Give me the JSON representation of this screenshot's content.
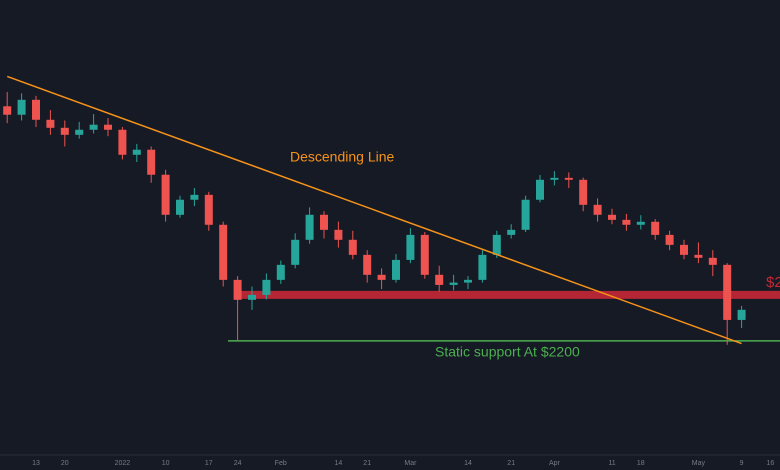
{
  "chart_data": {
    "type": "candlestick",
    "categories": [
      null,
      null,
      "13",
      null,
      "20",
      null,
      null,
      null,
      "2022",
      null,
      null,
      "10",
      null,
      null,
      "17",
      null,
      "24",
      null,
      null,
      "Feb",
      null,
      null,
      null,
      "14",
      null,
      "21",
      null,
      null,
      "Mar",
      null,
      null,
      null,
      "14",
      null,
      null,
      "21",
      null,
      null,
      "Apr",
      null,
      null,
      null,
      "11",
      null,
      "18",
      null,
      null,
      null,
      "May",
      null,
      null,
      "9",
      null,
      "16"
    ],
    "open": [
      4010,
      3945,
      4060,
      3906,
      3844,
      3790,
      3829,
      3868,
      3829,
      3636,
      3675,
      3482,
      3173,
      3289,
      3327,
      3096,
      2671,
      2517,
      2555,
      2671,
      2787,
      2980,
      3173,
      3057,
      2980,
      2864,
      2710,
      2671,
      2825,
      3018,
      2710,
      2632,
      2650,
      2671,
      2864,
      3018,
      3057,
      3289,
      3443,
      3458,
      3443,
      3250,
      3173,
      3134,
      3096,
      3119,
      3018,
      2941,
      2864,
      2841,
      2787,
      2362,
      null,
      null
    ],
    "high": [
      4120,
      4110,
      4090,
      3980,
      3900,
      3890,
      3950,
      3920,
      3850,
      3720,
      3700,
      3520,
      3320,
      3380,
      3350,
      3120,
      2700,
      2620,
      2720,
      2820,
      3030,
      3230,
      3200,
      3120,
      3050,
      2900,
      2760,
      2870,
      3070,
      3040,
      2780,
      2710,
      2700,
      2900,
      3050,
      3100,
      3320,
      3480,
      3510,
      3500,
      3460,
      3300,
      3220,
      3180,
      3170,
      3140,
      3050,
      2980,
      2960,
      2900,
      2800,
      2470,
      null,
      null
    ],
    "low": [
      3880,
      3900,
      3850,
      3790,
      3700,
      3760,
      3800,
      3780,
      3600,
      3580,
      3420,
      3120,
      3150,
      3240,
      3050,
      2620,
      2200,
      2440,
      2520,
      2640,
      2760,
      2950,
      2990,
      2920,
      2830,
      2650,
      2600,
      2650,
      2800,
      2680,
      2580,
      2590,
      2600,
      2650,
      2840,
      2990,
      3040,
      3270,
      3400,
      3380,
      3200,
      3120,
      3100,
      3050,
      3060,
      2980,
      2900,
      2830,
      2800,
      2700,
      2170,
      2300,
      null,
      null
    ],
    "close": [
      3945,
      4060,
      3906,
      3844,
      3790,
      3829,
      3868,
      3829,
      3636,
      3675,
      3482,
      3173,
      3289,
      3327,
      3096,
      2671,
      2517,
      2555,
      2671,
      2787,
      2980,
      3173,
      3057,
      2980,
      2864,
      2710,
      2671,
      2825,
      3018,
      2710,
      2632,
      2650,
      2671,
      2864,
      3018,
      3057,
      3289,
      3443,
      3458,
      3443,
      3250,
      3173,
      3134,
      3096,
      3119,
      3018,
      2941,
      2864,
      2841,
      2787,
      2362,
      2440,
      null,
      null
    ],
    "up_color": "#26a69a",
    "down_color": "#ef5350",
    "ylim": [
      1320,
      4830
    ],
    "trendline": {
      "label": "Descending Line",
      "values": [
        4240,
        2180
      ],
      "color": "#f7931a"
    },
    "resistance": {
      "label": "$2",
      "value": 2555,
      "color": "#c62836"
    },
    "support": {
      "label": "Static support At $2200",
      "value": 2200,
      "color": "#4caf50"
    }
  }
}
